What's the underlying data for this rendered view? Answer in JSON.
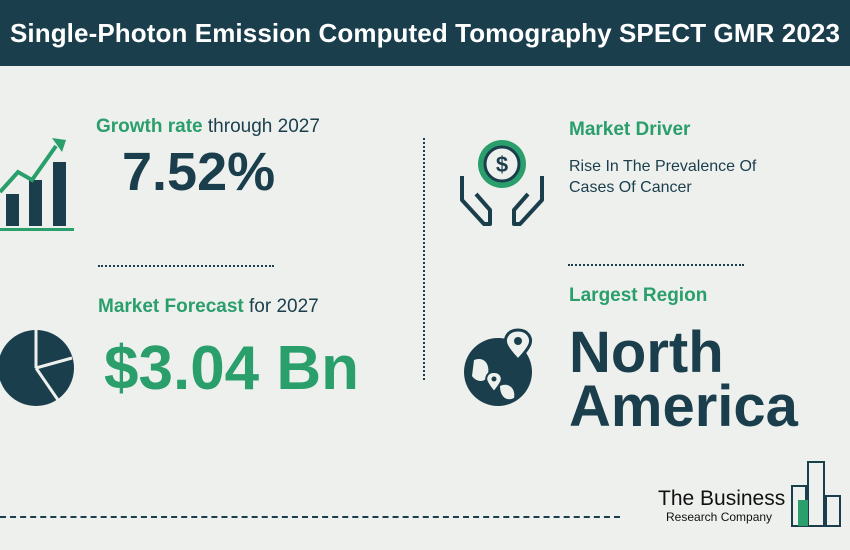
{
  "header": {
    "title": "Single-Photon Emission Computed Tomography SPECT GMR 2023"
  },
  "growth": {
    "label": "Growth rate",
    "suffix": "through 2027",
    "value": "7.52%",
    "icon": "growth-chart-icon"
  },
  "forecast": {
    "label": "Market Forecast",
    "suffix": "for 2027",
    "value": "$3.04 Bn",
    "icon": "pie-chart-icon"
  },
  "driver": {
    "label": "Market Driver",
    "text_line1": "Rise In The Prevalence Of",
    "text_line2": "Cases Of Cancer",
    "icon": "money-hands-icon"
  },
  "region": {
    "label": "Largest Region",
    "value_line1": "North",
    "value_line2": "America",
    "icon": "globe-pin-icon"
  },
  "logo": {
    "line1": "The Business",
    "line2": "Research Company"
  },
  "colors": {
    "navy": "#1a3e4c",
    "green": "#2a9e6b",
    "background": "#eef0ee"
  }
}
